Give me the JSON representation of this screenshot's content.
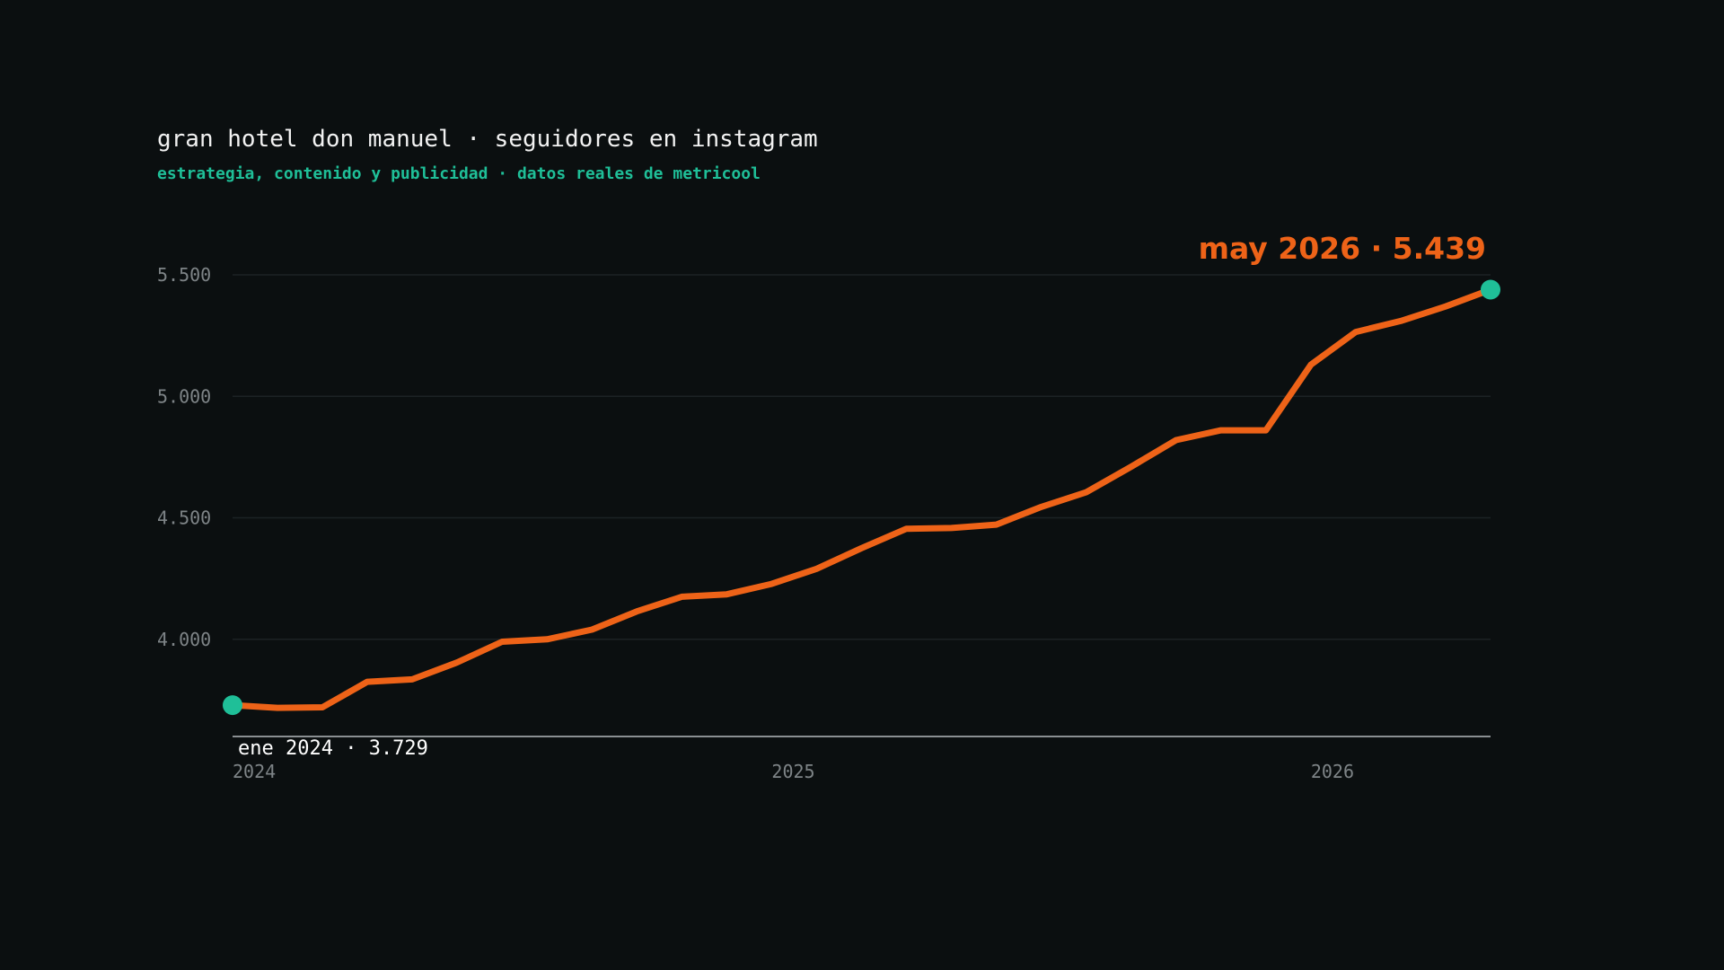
{
  "header": {
    "title": "gran hotel don manuel · seguidores en instagram",
    "subtitle": "estrategia, contenido y publicidad · datos reales de metricool"
  },
  "annotations": {
    "start_label": "ene 2024 · 3.729",
    "end_label": "may 2026 · 5.439"
  },
  "colors": {
    "background": "#0b0f10",
    "line": "#ee6318",
    "marker": "#1fbf98",
    "title": "#f2f2f2",
    "subtitle": "#1fbf98",
    "grid": "#1c2224",
    "axis": "#8a8f92",
    "tick": "#7e8487"
  },
  "chart_data": {
    "type": "line",
    "title": "gran hotel don manuel · seguidores en instagram",
    "subtitle": "estrategia, contenido y publicidad · datos reales de metricool",
    "xlabel": "",
    "ylabel": "",
    "x": [
      "2024-01",
      "2024-02",
      "2024-03",
      "2024-04",
      "2024-05",
      "2024-06",
      "2024-07",
      "2024-08",
      "2024-09",
      "2024-10",
      "2024-11",
      "2024-12",
      "2025-01",
      "2025-02",
      "2025-03",
      "2025-04",
      "2025-05",
      "2025-06",
      "2025-07",
      "2025-08",
      "2025-09",
      "2025-10",
      "2025-11",
      "2025-12",
      "2026-01",
      "2026-02",
      "2026-03",
      "2026-04",
      "2026-05"
    ],
    "series": [
      {
        "values": [
          3729,
          3718,
          3720,
          3825,
          3835,
          3905,
          3990,
          4000,
          4040,
          4115,
          4175,
          4185,
          4228,
          4290,
          4375,
          4455,
          4458,
          4472,
          4545,
          4605,
          4710,
          4820,
          4860,
          4860,
          5130,
          5265,
          5310,
          5370,
          5439
        ]
      }
    ],
    "x_tick_labels": [
      "2024",
      "2025",
      "2026"
    ],
    "y_tick_labels": [
      "4.000",
      "4.500",
      "5.000",
      "5.500"
    ],
    "y_ticks": [
      4000,
      4500,
      5000,
      5500
    ],
    "ylim": [
      3600,
      5500
    ],
    "grid": true,
    "legend": "none"
  }
}
